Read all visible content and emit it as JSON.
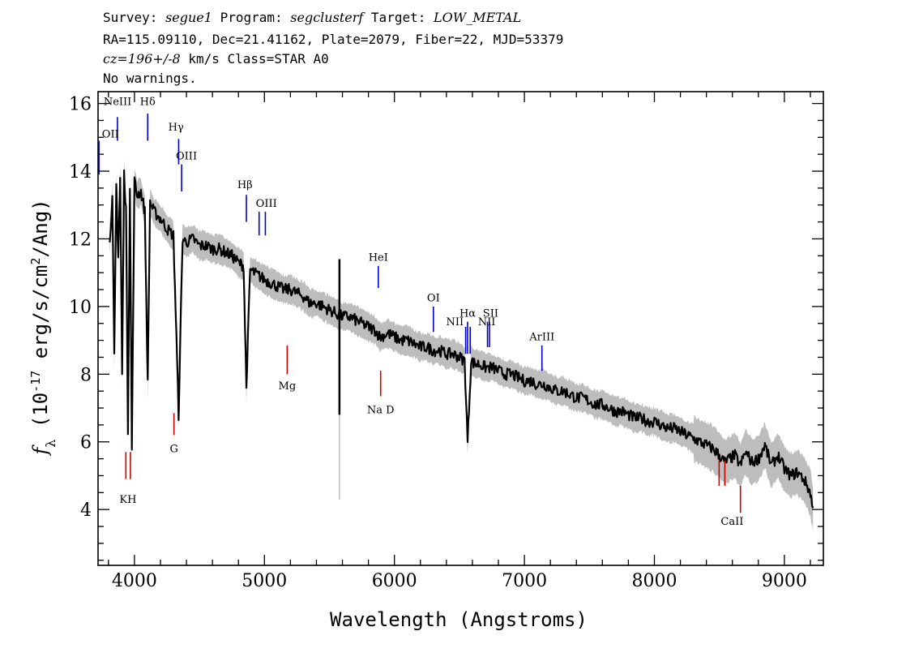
{
  "header": {
    "line1": {
      "survey_label": "Survey:",
      "survey": "segue1",
      "program_label": "Program:",
      "program": "segclusterf",
      "target_label": "Target:",
      "target": "LOW_METAL"
    },
    "line2": "RA=115.09110, Dec=21.41162, Plate=2079, Fiber=22, MJD=53379",
    "line3": {
      "cz": "cz=196+/-8",
      "rest": " km/s Class=STAR A0"
    },
    "line4": "No warnings."
  },
  "colors": {
    "spectrum": "#000000",
    "error_band": "#bdbdbd",
    "emission_lines": "#0000cc",
    "absorption_lines": "#cc0000",
    "frame": "#000000"
  },
  "chart_data": {
    "type": "line",
    "title": "",
    "xlabel": "Wavelength (Angstroms)",
    "ylabel": "f_λ (10^-17 erg/s/cm^2/Ang)",
    "xlim": [
      3720,
      9300
    ],
    "ylim": [
      2.35,
      16.35
    ],
    "x_ticks": [
      4000,
      5000,
      6000,
      7000,
      8000,
      9000
    ],
    "x_minor_step": 200,
    "y_ticks": [
      4,
      6,
      8,
      10,
      12,
      14,
      16
    ],
    "y_minor_step": 0.5,
    "series": [
      {
        "x": [
          3810,
          3830,
          3845,
          3860,
          3875,
          3890,
          3905,
          3920,
          3935,
          3950,
          3965,
          3980,
          4000,
          4020,
          4050,
          4080,
          4102,
          4120,
          4150,
          4200,
          4250,
          4300,
          4340,
          4370,
          4400,
          4450,
          4500,
          4550,
          4600,
          4650,
          4700,
          4750,
          4800,
          4840,
          4861,
          4890,
          4920,
          4960,
          5000,
          5050,
          5100,
          5150,
          5200,
          5250,
          5300,
          5350,
          5400,
          5450,
          5500,
          5550,
          5600,
          5650,
          5700,
          5750,
          5800,
          5850,
          5890,
          5950,
          6000,
          6050,
          6100,
          6150,
          6200,
          6250,
          6300,
          6350,
          6400,
          6450,
          6500,
          6540,
          6563,
          6590,
          6620,
          6650,
          6700,
          6750,
          6800,
          6850,
          6900,
          6950,
          7000,
          7050,
          7100,
          7150,
          7200,
          7250,
          7300,
          7350,
          7400,
          7450,
          7500,
          7550,
          7600,
          7650,
          7700,
          7750,
          7800,
          7850,
          7900,
          7950,
          8000,
          8050,
          8100,
          8150,
          8200,
          8250,
          8300,
          8350,
          8400,
          8450,
          8500,
          8542,
          8580,
          8620,
          8662,
          8700,
          8750,
          8800,
          8850,
          8900,
          8950,
          9000,
          9050,
          9100,
          9150,
          9200,
          9220
        ],
        "y": [
          12.0,
          13.2,
          8.5,
          13.6,
          11.5,
          13.8,
          8.0,
          13.9,
          12.9,
          6.4,
          13.5,
          5.8,
          13.7,
          13.3,
          13.4,
          12.8,
          7.7,
          13.1,
          12.8,
          12.6,
          12.3,
          12.1,
          6.8,
          12.0,
          11.9,
          12.0,
          11.8,
          11.8,
          11.7,
          11.7,
          11.6,
          11.5,
          11.3,
          11.2,
          7.6,
          11.1,
          11.0,
          10.9,
          10.8,
          10.7,
          10.6,
          10.5,
          10.5,
          10.4,
          10.3,
          10.1,
          10.1,
          10.0,
          9.9,
          9.8,
          9.7,
          9.7,
          9.6,
          9.5,
          9.4,
          9.3,
          9.1,
          9.2,
          9.1,
          9.0,
          9.0,
          8.9,
          8.8,
          8.8,
          8.7,
          8.7,
          8.6,
          8.6,
          8.5,
          8.4,
          6.0,
          8.4,
          8.3,
          8.3,
          8.2,
          8.2,
          8.1,
          8.0,
          8.0,
          7.9,
          7.8,
          7.8,
          7.7,
          7.7,
          7.6,
          7.5,
          7.5,
          7.4,
          7.3,
          7.3,
          7.2,
          7.1,
          7.1,
          7.0,
          6.9,
          6.9,
          6.8,
          6.7,
          6.7,
          6.6,
          6.6,
          6.5,
          6.4,
          6.4,
          6.3,
          6.2,
          6.1,
          6.0,
          5.9,
          5.8,
          5.6,
          5.4,
          5.5,
          5.6,
          5.3,
          5.7,
          5.4,
          5.5,
          5.9,
          5.3,
          5.6,
          5.2,
          5.0,
          5.1,
          4.9,
          4.5,
          4.0
        ]
      }
    ],
    "spikes": [
      {
        "x": 5577,
        "low": 4.3,
        "high": 11.4
      }
    ],
    "emission_lines": [
      {
        "name": "OII",
        "x": 3727
      },
      {
        "name": "NeIII",
        "x": 3869
      },
      {
        "name": "Hδ",
        "x": 4102
      },
      {
        "name": "Hγ",
        "x": 4340
      },
      {
        "name": "OIII",
        "x": 4363
      },
      {
        "name": "Hβ",
        "x": 4861
      },
      {
        "name": "OIII",
        "x": 4959
      },
      {
        "name": "OIII",
        "x": 5007
      },
      {
        "name": "HeI",
        "x": 5876
      },
      {
        "name": "OI",
        "x": 6300
      },
      {
        "name": "NII",
        "x": 6548
      },
      {
        "name": "Hα",
        "x": 6563
      },
      {
        "name": "NII",
        "x": 6583
      },
      {
        "name": "SII",
        "x": 6716
      },
      {
        "name": "SII",
        "x": 6731
      },
      {
        "name": "ArIII",
        "x": 7135
      }
    ],
    "absorption_lines": [
      {
        "name": "K",
        "x": 3934
      },
      {
        "name": "H",
        "x": 3969
      },
      {
        "name": "G",
        "x": 4304
      },
      {
        "name": "Mg",
        "x": 5175
      },
      {
        "name": "Na",
        "x": 5894
      },
      {
        "name": "D",
        "x": 5894
      },
      {
        "name": "CaII",
        "x": 8498
      },
      {
        "name": "CaII",
        "x": 8542
      },
      {
        "name": "CaII",
        "x": 8662
      }
    ],
    "line_label_texts": [
      "OII",
      "NeIII",
      "Hδ",
      "Hγ",
      "OIII",
      "Hβ",
      "OIII",
      "HeI",
      "OI",
      "NII",
      "Hα",
      "SII",
      "NII",
      "ArIII",
      "KH",
      "G",
      "Mg",
      "Na  D",
      "CaII"
    ],
    "grid": false,
    "legend": "none"
  }
}
